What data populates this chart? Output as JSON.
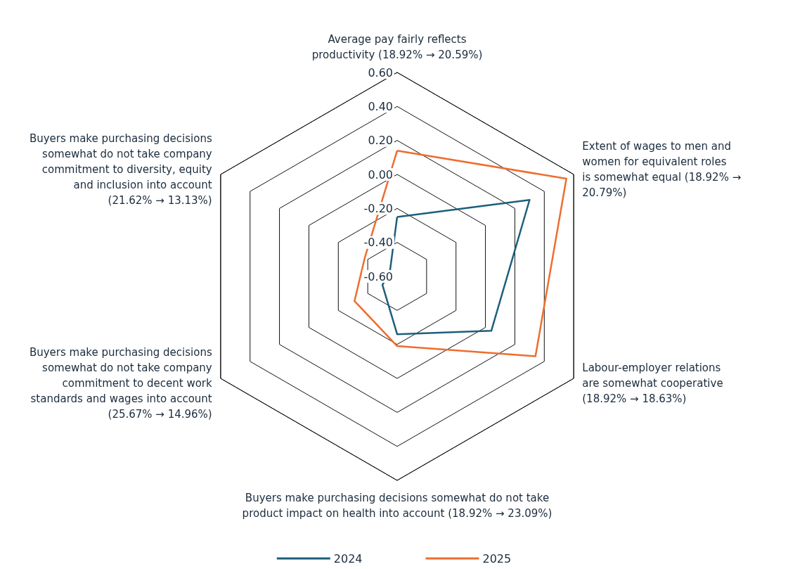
{
  "chart_data": {
    "type": "radar",
    "categories": [
      "Average pay fairly reflects productivity (18.92% → 20.59%)",
      "Extent of wages to men and women for equivalent roles is somewhat equal (18.92% → 20.79%)",
      "Labour-employer relations are somewhat cooperative (18.92% → 18.63%)",
      "Buyers make purchasing decisions somewhat do not take product impact on health into account (18.92% → 23.09%)",
      "Buyers make purchasing decisions somewhat do not take company commitment to decent work standards and wages into account (25.67% → 14.96%)",
      "Buyers make purchasing decisions somewhat do not take company commitment to diversity, equity and inclusion into account (21.62% → 13.13%)"
    ],
    "series": [
      {
        "name": "2024",
        "color": "#1d5f7c",
        "values": [
          -0.25,
          0.3,
          0.04,
          -0.26,
          -0.5,
          -0.55
        ]
      },
      {
        "name": "2025",
        "color": "#ee6d2e",
        "values": [
          0.14,
          0.55,
          0.34,
          -0.19,
          -0.31,
          -0.38
        ]
      }
    ],
    "ylim": [
      -0.6,
      0.6
    ],
    "yticks": [
      {
        "value": -0.6,
        "label": "-0.60"
      },
      {
        "value": -0.4,
        "label": "-0.40"
      },
      {
        "value": -0.2,
        "label": "-0.20"
      },
      {
        "value": 0,
        "label": "0.00"
      },
      {
        "value": 0.2,
        "label": "0.20"
      },
      {
        "value": 0.4,
        "label": "0.40"
      },
      {
        "value": 0.6,
        "label": "0.60"
      }
    ],
    "legend": "bottom",
    "marker": "none",
    "line_style": "solid"
  }
}
